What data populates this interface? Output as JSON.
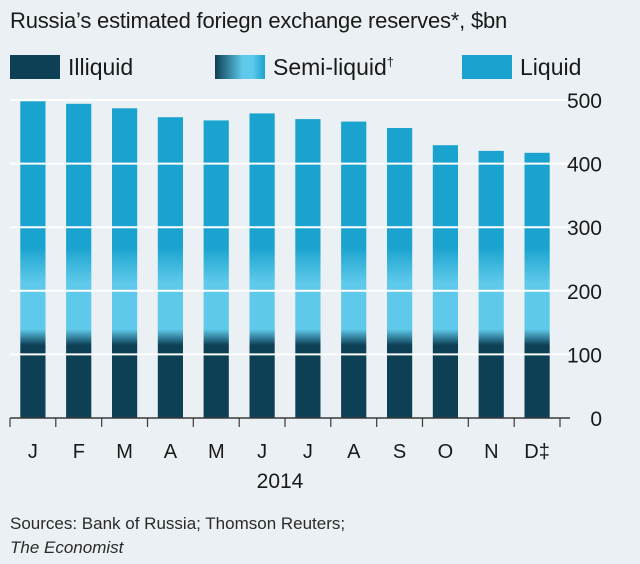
{
  "title": "Russia’s estimated foriegn exchange reserves*, $bn",
  "legend": [
    {
      "label": "Illiquid",
      "marker": ""
    },
    {
      "label": "Semi-liquid",
      "marker": "†"
    },
    {
      "label": "Liquid",
      "marker": ""
    }
  ],
  "colors": {
    "illiquid": "#0d3f55",
    "semi_liquid": "#5ec9ea",
    "liquid": "#1aa3cf",
    "grid": "#ffffff",
    "background": "#eaf0f3"
  },
  "source_line1": "Sources: Bank of Russia; Thomson Reuters;",
  "source_line2": "The Economist",
  "chart_data": {
    "type": "bar",
    "stacked": true,
    "title": "Russia’s estimated foriegn exchange reserves*, $bn",
    "categories": [
      "J",
      "F",
      "M",
      "A",
      "M",
      "J",
      "J",
      "A",
      "S",
      "O",
      "N",
      "D‡"
    ],
    "x_group_label": "2014",
    "ylim": [
      0,
      500
    ],
    "yticks": [
      0,
      100,
      200,
      300,
      400,
      500
    ],
    "grid": true,
    "legend_position": "top",
    "series": [
      {
        "name": "Illiquid",
        "values": [
          130,
          130,
          130,
          130,
          130,
          130,
          130,
          130,
          130,
          130,
          130,
          130
        ]
      },
      {
        "name": "Semi-liquid",
        "values": [
          110,
          110,
          110,
          110,
          110,
          110,
          110,
          110,
          110,
          110,
          110,
          110
        ]
      },
      {
        "name": "Liquid",
        "values": [
          258,
          254,
          247,
          233,
          228,
          239,
          230,
          226,
          216,
          189,
          180,
          177
        ]
      }
    ],
    "totals": [
      498,
      494,
      487,
      473,
      468,
      479,
      470,
      466,
      456,
      429,
      420,
      417
    ]
  }
}
